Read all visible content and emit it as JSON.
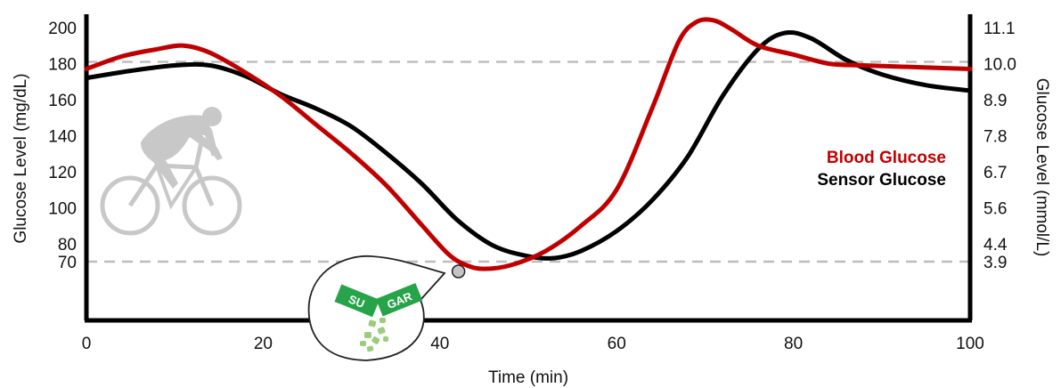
{
  "chart_data": {
    "type": "line",
    "xlabel": "Time (min)",
    "ylabel_left": "Glucose Level (mg/dL)",
    "ylabel_right": "Glucose Level (mmol/L)",
    "xlim": [
      0,
      100
    ],
    "ylim": [
      50,
      210
    ],
    "x_ticks": [
      0,
      20,
      40,
      60,
      80,
      100
    ],
    "y_ticks_left": [
      70,
      80,
      100,
      120,
      140,
      160,
      180,
      200
    ],
    "y_ticks_right": [
      {
        "value": 70,
        "label": "3.9"
      },
      {
        "value": 80,
        "label": "4.4"
      },
      {
        "value": 100,
        "label": "5.6"
      },
      {
        "value": 120,
        "label": "6.7"
      },
      {
        "value": 140,
        "label": "7.8"
      },
      {
        "value": 160,
        "label": "8.9"
      },
      {
        "value": 180,
        "label": "10.0"
      },
      {
        "value": 200,
        "label": "11.1"
      }
    ],
    "reference_lines": [
      70,
      181
    ],
    "grid": false,
    "legend_position": "right",
    "series": [
      {
        "name": "Blood Glucose",
        "color": "#c00000",
        "x": [
          0,
          4,
          8,
          11,
          14,
          18,
          22,
          26,
          30,
          34,
          38,
          41,
          43,
          45,
          48,
          52,
          56,
          60,
          64,
          67,
          69,
          71,
          73,
          76,
          80,
          84,
          88,
          94,
          100
        ],
        "y": [
          177,
          184,
          188,
          190,
          186,
          175,
          162,
          146,
          130,
          112,
          90,
          74,
          68,
          66,
          68,
          76,
          90,
          110,
          155,
          192,
          203,
          204,
          199,
          190,
          185,
          180,
          179,
          178,
          177
        ]
      },
      {
        "name": "Sensor Glucose",
        "color": "#000000",
        "x": [
          0,
          5,
          10,
          14,
          18,
          22,
          26,
          30,
          34,
          38,
          42,
          46,
          50,
          53,
          56,
          60,
          64,
          68,
          72,
          76,
          79,
          82,
          86,
          90,
          95,
          100
        ],
        "y": [
          172,
          176,
          179,
          179,
          173,
          163,
          155,
          145,
          130,
          113,
          93,
          79,
          73,
          72,
          76,
          87,
          104,
          128,
          162,
          188,
          197,
          194,
          182,
          174,
          168,
          165
        ]
      }
    ],
    "annotation": {
      "text_left": "SU",
      "text_right": "GAR",
      "marker_x": 42,
      "marker_y": 70
    }
  }
}
